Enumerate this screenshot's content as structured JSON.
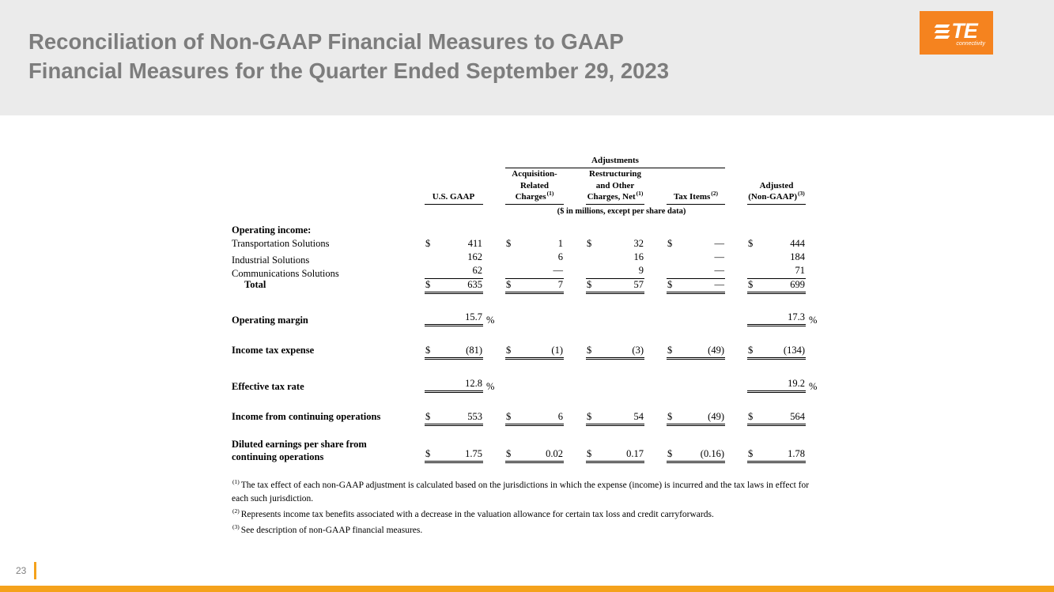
{
  "slide": {
    "title_line1": "Reconciliation of Non-GAAP Financial Measures to GAAP",
    "title_line2": "Financial Measures for the Quarter Ended September 29, 2023",
    "page_number": "23"
  },
  "logo": {
    "te": "TE",
    "tagline": "connectivity"
  },
  "colors": {
    "brand_orange": "#F5831F",
    "footer_bar_orange": "#F5A21C",
    "title_gray": "#7D7D7D",
    "header_band_gray": "#EBEBEB"
  },
  "table": {
    "adjustments_label": "Adjustments",
    "units_note": "($ in millions, except per share data)",
    "columns": [
      {
        "h1": "",
        "h2": "",
        "h3": "U.S. GAAP",
        "sup": ""
      },
      {
        "h1": "Acquisition-",
        "h2": "Related",
        "h3": "Charges",
        "sup": "(1)"
      },
      {
        "h1": "Restructuring",
        "h2": "and Other",
        "h3": "Charges, Net",
        "sup": "(1)"
      },
      {
        "h1": "",
        "h2": "",
        "h3": "Tax Items",
        "sup": "(2)"
      },
      {
        "h1": "",
        "h2": "Adjusted",
        "h3": "(Non-GAAP)",
        "sup": "(3)"
      }
    ],
    "section_header": "Operating income:",
    "rows": {
      "transportation": {
        "label": "Transportation Solutions",
        "c0d": "$",
        "c0": "411",
        "c1d": "$",
        "c1": "1",
        "c2d": "$",
        "c2": "32",
        "c3d": "$",
        "c3": "—",
        "c4d": "$",
        "c4": "444"
      },
      "industrial": {
        "label": "Industrial Solutions",
        "c0d": "",
        "c0": "162",
        "c1d": "",
        "c1": "6",
        "c2d": "",
        "c2": "16",
        "c3d": "",
        "c3": "—",
        "c4d": "",
        "c4": "184"
      },
      "communications": {
        "label": "Communications Solutions",
        "c0d": "",
        "c0": "62",
        "c1d": "",
        "c1": "—",
        "c2d": "",
        "c2": "9",
        "c3d": "",
        "c3": "—",
        "c4d": "",
        "c4": "71"
      },
      "total": {
        "label": "Total",
        "c0d": "$",
        "c0": "635",
        "c1d": "$",
        "c1": "7",
        "c2d": "$",
        "c2": "57",
        "c3d": "$",
        "c3": "—",
        "c4d": "$",
        "c4": "699"
      },
      "operating_margin": {
        "label": "Operating margin",
        "c0": "15.7",
        "pct0": "%",
        "c4": "17.3",
        "pct4": "%"
      },
      "income_tax_expense": {
        "label": "Income tax expense",
        "c0d": "$",
        "c0": "(81)",
        "c1d": "$",
        "c1": "(1)",
        "c2d": "$",
        "c2": "(3)",
        "c3d": "$",
        "c3": "(49)",
        "c4d": "$",
        "c4": "(134)"
      },
      "effective_tax_rate": {
        "label": "Effective tax rate",
        "c0": "12.8",
        "pct0": "%",
        "c4": "19.2",
        "pct4": "%"
      },
      "continuing_operations": {
        "label": "Income from continuing operations",
        "c0d": "$",
        "c0": "553",
        "c1d": "$",
        "c1": "6",
        "c2d": "$",
        "c2": "54",
        "c3d": "$",
        "c3": "(49)",
        "c4d": "$",
        "c4": "564"
      },
      "diluted_eps": {
        "label_line1": "Diluted earnings per share from",
        "label_line2": "continuing operations",
        "c0d": "$",
        "c0": "1.75",
        "c1d": "$",
        "c1": "0.02",
        "c2d": "$",
        "c2": "0.17",
        "c3d": "$",
        "c3": "(0.16)",
        "c4d": "$",
        "c4": "1.78"
      }
    }
  },
  "footnotes": [
    {
      "sup": "(1)",
      "text": "The tax effect of each non-GAAP adjustment is calculated based on the jurisdictions in which the expense (income) is incurred and the tax laws in effect for each such jurisdiction."
    },
    {
      "sup": "(2)",
      "text": "Represents income tax benefits associated with a decrease in the valuation allowance for certain tax loss and credit carryforwards."
    },
    {
      "sup": "(3)",
      "text": "See description of non-GAAP financial measures."
    }
  ]
}
